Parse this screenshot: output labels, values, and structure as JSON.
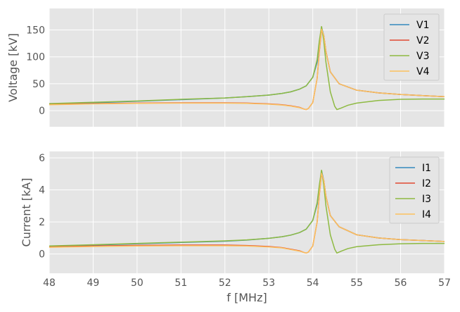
{
  "chart_data": [
    {
      "type": "line",
      "ylabel": "Voltage [kV]",
      "xlabel": "",
      "xlim": [
        48,
        57
      ],
      "ylim": [
        -30,
        190
      ],
      "xticks": [
        48,
        49,
        50,
        51,
        52,
        53,
        54,
        55,
        56,
        57
      ],
      "yticks": [
        0,
        50,
        100,
        150
      ],
      "show_xtick_labels": false,
      "grid": true,
      "legend": "top-right",
      "series": [
        {
          "name": "V1",
          "color": "#348ABD",
          "x": [
            48,
            49,
            50,
            51,
            52,
            52.5,
            53,
            53.3,
            53.5,
            53.7,
            53.85,
            54.0,
            54.1,
            54.15,
            54.2,
            54.25,
            54.3,
            54.4,
            54.6,
            55,
            55.5,
            56,
            56.5,
            57
          ],
          "y": [
            12,
            14.5,
            17.5,
            20.5,
            23.5,
            26,
            29,
            32,
            35,
            40,
            46,
            62,
            90,
            125,
            155,
            140,
            110,
            72,
            50,
            38,
            33,
            30,
            28,
            26
          ]
        },
        {
          "name": "V2",
          "color": "#E24A33",
          "x": [
            48,
            49,
            50,
            51,
            52,
            52.5,
            53,
            53.3,
            53.5,
            53.7,
            53.8,
            53.85,
            53.9,
            54.0,
            54.1,
            54.15,
            54.2,
            54.25,
            54.3,
            54.4,
            54.6,
            55,
            55.5,
            56,
            56.5,
            57
          ],
          "y": [
            12,
            13,
            14,
            14.5,
            14.5,
            14,
            12.5,
            11,
            9,
            6,
            3,
            2,
            4,
            15,
            60,
            110,
            150,
            140,
            110,
            72,
            50,
            38,
            33,
            30,
            28,
            26
          ]
        },
        {
          "name": "V3",
          "color": "#8EBA42",
          "x": [
            48,
            49,
            50,
            51,
            52,
            52.5,
            53,
            53.3,
            53.5,
            53.7,
            53.85,
            54.0,
            54.1,
            54.15,
            54.2,
            54.25,
            54.3,
            54.4,
            54.5,
            54.55,
            54.65,
            54.8,
            55,
            55.5,
            56,
            56.5,
            57
          ],
          "y": [
            13,
            15.5,
            18,
            21,
            23.5,
            26,
            29,
            32,
            35,
            40,
            46,
            62,
            95,
            130,
            157,
            130,
            90,
            35,
            8,
            2,
            5,
            10,
            14,
            19,
            21,
            21.5,
            21.5
          ]
        },
        {
          "name": "V4",
          "color": "#FBC15E",
          "x": [
            48,
            49,
            50,
            51,
            52,
            52.5,
            53,
            53.3,
            53.5,
            53.7,
            53.8,
            53.85,
            53.9,
            54.0,
            54.1,
            54.15,
            54.2,
            54.25,
            54.3,
            54.4,
            54.6,
            55,
            55.5,
            56,
            56.5,
            57
          ],
          "y": [
            11,
            12.5,
            13.5,
            14,
            14,
            13.5,
            12,
            10.5,
            8.5,
            5.5,
            3,
            2,
            4,
            15,
            60,
            112,
            152,
            140,
            110,
            72,
            50,
            38,
            33,
            30,
            28,
            26
          ]
        }
      ]
    },
    {
      "type": "line",
      "ylabel": "Current [kA]",
      "xlabel": "f [MHz]",
      "xlim": [
        48,
        57
      ],
      "ylim": [
        -1.2,
        6.4
      ],
      "xticks": [
        48,
        49,
        50,
        51,
        52,
        53,
        54,
        55,
        56,
        57
      ],
      "yticks": [
        0,
        2,
        4,
        6
      ],
      "show_xtick_labels": true,
      "grid": true,
      "legend": "top-right",
      "series": [
        {
          "name": "I1",
          "color": "#348ABD",
          "x": [
            48,
            49,
            50,
            51,
            52,
            52.5,
            53,
            53.3,
            53.5,
            53.7,
            53.85,
            54.0,
            54.1,
            54.15,
            54.2,
            54.25,
            54.3,
            54.4,
            54.6,
            55,
            55.5,
            56,
            56.5,
            57
          ],
          "y": [
            0.48,
            0.56,
            0.64,
            0.72,
            0.8,
            0.87,
            0.98,
            1.08,
            1.18,
            1.34,
            1.55,
            2.1,
            3.1,
            4.2,
            5.2,
            4.6,
            3.6,
            2.4,
            1.7,
            1.2,
            1.0,
            0.9,
            0.84,
            0.78
          ]
        },
        {
          "name": "I2",
          "color": "#E24A33",
          "x": [
            48,
            49,
            50,
            51,
            52,
            52.5,
            53,
            53.3,
            53.5,
            53.7,
            53.8,
            53.85,
            53.9,
            54.0,
            54.1,
            54.15,
            54.2,
            54.25,
            54.3,
            54.4,
            54.6,
            55,
            55.5,
            56,
            56.5,
            57
          ],
          "y": [
            0.45,
            0.5,
            0.54,
            0.56,
            0.56,
            0.53,
            0.47,
            0.4,
            0.3,
            0.2,
            0.1,
            0.06,
            0.12,
            0.5,
            2.0,
            3.7,
            5.0,
            4.6,
            3.6,
            2.4,
            1.7,
            1.2,
            1.0,
            0.9,
            0.84,
            0.78
          ]
        },
        {
          "name": "I3",
          "color": "#8EBA42",
          "x": [
            48,
            49,
            50,
            51,
            52,
            52.5,
            53,
            53.3,
            53.5,
            53.7,
            53.85,
            54.0,
            54.1,
            54.15,
            54.2,
            54.25,
            54.3,
            54.4,
            54.5,
            54.55,
            54.65,
            54.8,
            55,
            55.5,
            56,
            56.5,
            57
          ],
          "y": [
            0.5,
            0.58,
            0.66,
            0.74,
            0.82,
            0.88,
            0.98,
            1.08,
            1.18,
            1.34,
            1.55,
            2.1,
            3.2,
            4.3,
            5.25,
            4.3,
            3.0,
            1.2,
            0.3,
            0.06,
            0.18,
            0.34,
            0.46,
            0.58,
            0.64,
            0.66,
            0.66
          ]
        },
        {
          "name": "I4",
          "color": "#FBC15E",
          "x": [
            48,
            49,
            50,
            51,
            52,
            52.5,
            53,
            53.3,
            53.5,
            53.7,
            53.8,
            53.85,
            53.9,
            54.0,
            54.1,
            54.15,
            54.2,
            54.25,
            54.3,
            54.4,
            54.6,
            55,
            55.5,
            56,
            56.5,
            57
          ],
          "y": [
            0.42,
            0.47,
            0.5,
            0.52,
            0.52,
            0.5,
            0.44,
            0.38,
            0.28,
            0.18,
            0.1,
            0.06,
            0.12,
            0.5,
            2.0,
            3.75,
            5.05,
            4.6,
            3.6,
            2.4,
            1.7,
            1.2,
            1.0,
            0.9,
            0.84,
            0.78
          ]
        }
      ]
    }
  ]
}
